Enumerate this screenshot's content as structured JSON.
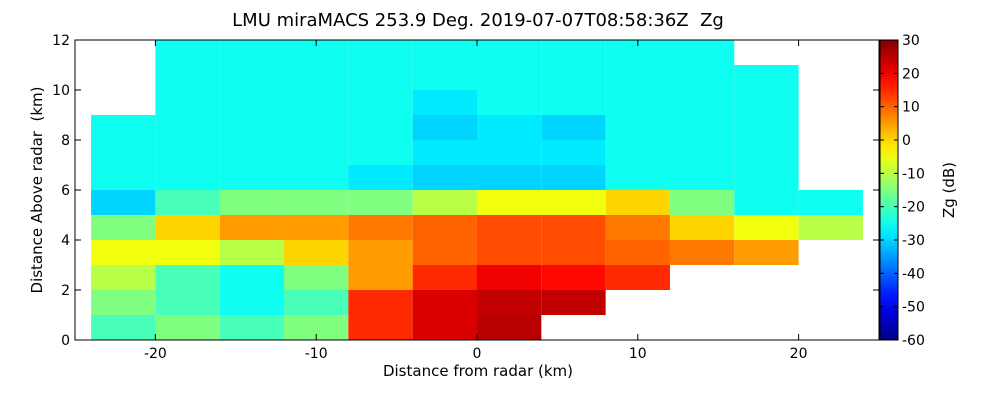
{
  "chart_data": {
    "type": "heatmap",
    "title": "LMU miraMACS 253.9 Deg. 2019-07-07T08:58:36Z  Zg",
    "x_label": "Distance from radar (km)",
    "y_label": "Distance Above radar  (km)",
    "colorbar_label": "Zg (dB)",
    "colormap": "jet",
    "xlim": [
      -25,
      25
    ],
    "ylim": [
      0,
      12
    ],
    "xticks": [
      -20,
      -10,
      0,
      10,
      20
    ],
    "yticks": [
      0,
      2,
      4,
      6,
      8,
      10,
      12
    ],
    "clim": [
      -60,
      30
    ],
    "cticks": [
      -60,
      -50,
      -40,
      -30,
      -20,
      -10,
      0,
      10,
      20,
      30
    ],
    "xbins": [
      -24,
      -20,
      -16,
      -12,
      -8,
      -4,
      0,
      4,
      8,
      12,
      16,
      20,
      24
    ],
    "ybins": [
      0,
      1,
      2,
      3,
      4,
      5,
      6,
      7,
      8,
      9,
      10,
      11,
      12
    ],
    "values": [
      [
        -20,
        -15,
        -20,
        -15,
        15,
        22,
        25,
        null,
        null,
        null,
        null,
        null
      ],
      [
        -15,
        -20,
        -25,
        -20,
        15,
        22,
        24,
        24,
        null,
        null,
        null,
        null
      ],
      [
        -10,
        -20,
        -25,
        -15,
        5,
        15,
        20,
        18,
        15,
        null,
        null,
        null
      ],
      [
        -5,
        -5,
        -10,
        0,
        5,
        10,
        12,
        12,
        10,
        8,
        5,
        null
      ],
      [
        -15,
        0,
        5,
        5,
        8,
        10,
        12,
        12,
        8,
        0,
        -5,
        -10
      ],
      [
        -30,
        -20,
        -15,
        -15,
        -15,
        -10,
        -5,
        -5,
        0,
        -15,
        -25,
        -25
      ],
      [
        -25,
        -25,
        -25,
        -25,
        -28,
        -30,
        -30,
        -30,
        -25,
        -25,
        -25,
        null
      ],
      [
        -25,
        -25,
        -25,
        -25,
        -25,
        -28,
        -28,
        -28,
        -25,
        -25,
        -25,
        null
      ],
      [
        -25,
        -25,
        -25,
        -25,
        -25,
        -30,
        -28,
        -30,
        -25,
        -25,
        -25,
        null
      ],
      [
        null,
        -25,
        -25,
        -25,
        -25,
        -28,
        -25,
        -25,
        -25,
        -25,
        -25,
        null
      ],
      [
        null,
        -25,
        -25,
        -25,
        -25,
        -25,
        -25,
        -25,
        -25,
        -25,
        -25,
        null
      ],
      [
        null,
        -25,
        -25,
        -25,
        -25,
        -25,
        -25,
        -25,
        -25,
        -25,
        null,
        null
      ]
    ]
  }
}
